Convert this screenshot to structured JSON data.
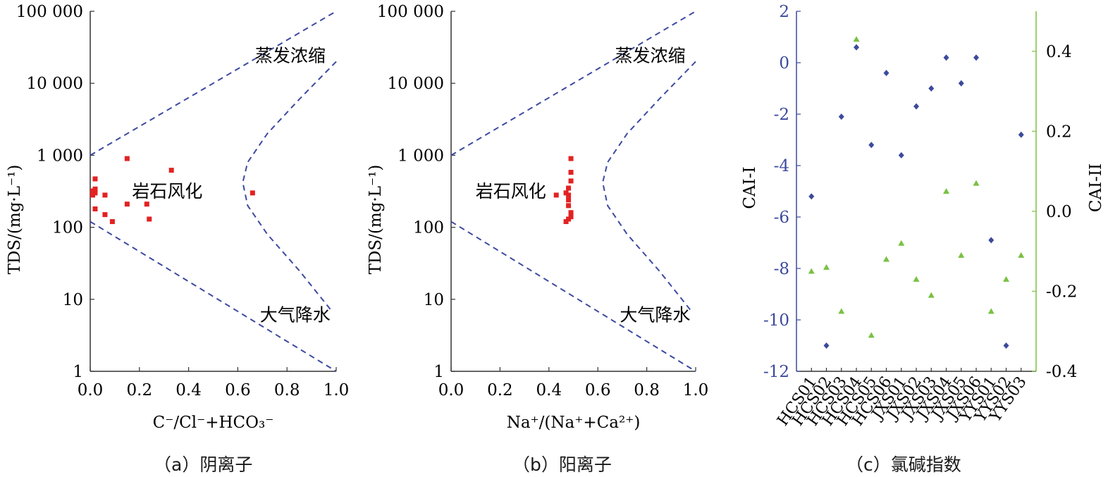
{
  "chart_data": [
    {
      "type": "scatter",
      "caption": "（a）阴离子",
      "xlabel": "C⁻/Cl⁻+HCO₃⁻",
      "ylabel": "TDS/(mg·L⁻¹)",
      "xlim": [
        0,
        1.0
      ],
      "ylim": [
        1,
        100000
      ],
      "yscale": "log",
      "xticks": [
        "0.0",
        "0.2",
        "0.4",
        "0.6",
        "0.8",
        "1.0"
      ],
      "yticks": [
        "1",
        "10",
        "100",
        "1 000",
        "10 000",
        "100 000"
      ],
      "annotations": [
        "蒸发浓缩",
        "岩石风化",
        "大气降水"
      ],
      "series": [
        {
          "color": "#e32222",
          "points": [
            [
              0.01,
              320
            ],
            [
              0.01,
              280
            ],
            [
              0.02,
              470
            ],
            [
              0.02,
              340
            ],
            [
              0.02,
              300
            ],
            [
              0.02,
              180
            ],
            [
              0.06,
              280
            ],
            [
              0.06,
              150
            ],
            [
              0.09,
              120
            ],
            [
              0.15,
              900
            ],
            [
              0.15,
              210
            ],
            [
              0.23,
              210
            ],
            [
              0.24,
              130
            ],
            [
              0.33,
              620
            ],
            [
              0.66,
              300
            ]
          ]
        }
      ]
    },
    {
      "type": "scatter",
      "caption": "（b）阳离子",
      "xlabel": "Na⁺/(Na⁺+Ca²⁺)",
      "ylabel": "TDS/(mg·L⁻¹)",
      "xlim": [
        0,
        1.0
      ],
      "ylim": [
        1,
        100000
      ],
      "yscale": "log",
      "xticks": [
        "0.0",
        "0.2",
        "0.4",
        "0.6",
        "0.8",
        "1.0"
      ],
      "yticks": [
        "1",
        "10",
        "100",
        "1 000",
        "10 000",
        "100 000"
      ],
      "annotations": [
        "蒸发浓缩",
        "岩石风化",
        "大气降水"
      ],
      "series": [
        {
          "color": "#e32222",
          "points": [
            [
              0.49,
              900
            ],
            [
              0.49,
              580
            ],
            [
              0.49,
              440
            ],
            [
              0.48,
              350
            ],
            [
              0.47,
              300
            ],
            [
              0.48,
              280
            ],
            [
              0.43,
              280
            ],
            [
              0.48,
              240
            ],
            [
              0.48,
              200
            ],
            [
              0.49,
              160
            ],
            [
              0.49,
              140
            ],
            [
              0.48,
              130
            ],
            [
              0.47,
              120
            ]
          ]
        }
      ]
    },
    {
      "type": "scatter",
      "caption": "（c）氯碱指数",
      "ylabel_left": "CAI-I",
      "ylabel_right": "CAI-II",
      "categories": [
        "HCS01",
        "HCS02",
        "HCS03",
        "HCS04",
        "HCS05",
        "HCS06",
        "JXS01",
        "JXS02",
        "JXS03",
        "JXS04",
        "JXS05",
        "JXS06",
        "YYS01",
        "YYS02",
        "YYS03"
      ],
      "ylim_left": [
        -12,
        2
      ],
      "ylim_right": [
        -0.4,
        0.5
      ],
      "yticks_left": [
        "2",
        "0",
        "-2",
        "-4",
        "-6",
        "-8",
        "-10",
        "-12"
      ],
      "yticks_right": [
        "0.4",
        "0.2",
        "0.0",
        "-0.2",
        "-0.4"
      ],
      "colors": {
        "left_axis": "#3c4a9c",
        "right_axis": "#79c142"
      },
      "series": [
        {
          "name": "CAI-I",
          "axis": "left",
          "marker": "diamond",
          "color": "#3c4a9c",
          "values": [
            -5.2,
            -11.0,
            -2.1,
            0.6,
            -3.2,
            -0.4,
            -3.6,
            -1.7,
            -1.0,
            0.2,
            -0.8,
            0.2,
            -6.9,
            -11.0,
            -2.8
          ]
        },
        {
          "name": "CAI-II",
          "axis": "right",
          "marker": "triangle",
          "color": "#79c142",
          "values": [
            -0.15,
            -0.14,
            -0.25,
            0.43,
            -0.31,
            -0.12,
            -0.08,
            -0.17,
            -0.21,
            0.05,
            -0.11,
            0.07,
            -0.25,
            -0.17,
            -0.11
          ]
        }
      ]
    }
  ]
}
